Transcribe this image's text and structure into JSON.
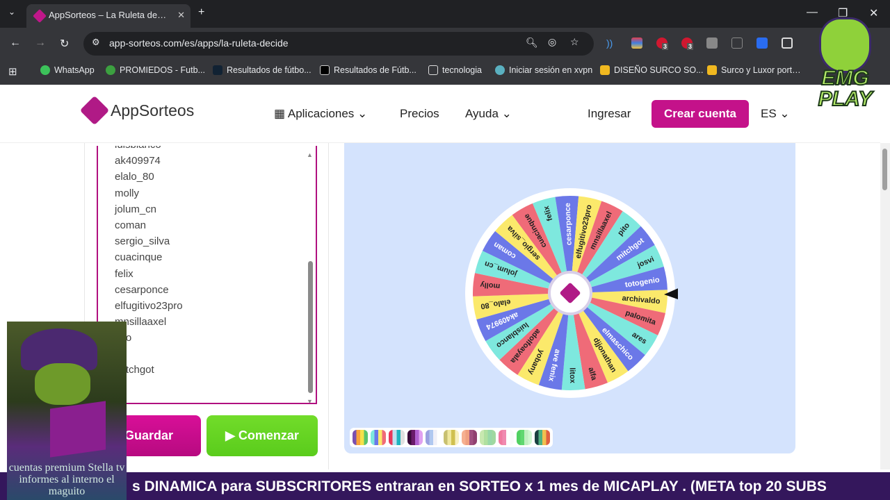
{
  "browser": {
    "tab_title": "AppSorteos – La Ruleta de la Suerte",
    "url": "app-sorteos.com/es/apps/la-ruleta-decide",
    "extension_badges": [
      "3",
      "3"
    ],
    "bookmarks": [
      "WhatsApp",
      "PROMIEDOS - Futb...",
      "Resultados de fútbo...",
      "Resultados de Fútb...",
      "tecnologia",
      "Iniciar sesión en xvpn",
      "DISEÑO SURCO SO...",
      "Surco y Luxor porta..."
    ]
  },
  "header": {
    "logo": "AppSorteos",
    "nav": [
      "Aplicaciones",
      "Precios",
      "Ayuda"
    ],
    "login": "Ingresar",
    "signup": "Crear cuenta",
    "lang": "ES"
  },
  "entries": {
    "lines": [
      "luisblanco",
      "ak409974",
      "elalo_80",
      "molly",
      "jolum_cn",
      "coman",
      "sergio_silva",
      "cuacinque",
      "felix",
      "cesarponce",
      "elfugitivo23pro",
      "mnsillaaxel",
      "pito",
      "mitchgot"
    ]
  },
  "buttons": {
    "save": "Guardar",
    "start": "Comenzar"
  },
  "wheel": {
    "segments": [
      {
        "name": "archivaldo",
        "color": "#fbe96b"
      },
      {
        "name": "palomita",
        "color": "#ef6b78"
      },
      {
        "name": "ares",
        "color": "#7ee8de"
      },
      {
        "name": "elmaschico",
        "color": "#6b78e8"
      },
      {
        "name": "djjonathan",
        "color": "#fbe96b"
      },
      {
        "name": "alfa",
        "color": "#ef6b78"
      },
      {
        "name": "litox",
        "color": "#7ee8de"
      },
      {
        "name": "ave fenix",
        "color": "#6b78e8"
      },
      {
        "name": "yobany",
        "color": "#fbe96b"
      },
      {
        "name": "adolfoayala",
        "color": "#ef6b78"
      },
      {
        "name": "luisblanco",
        "color": "#7ee8de"
      },
      {
        "name": "ak409974",
        "color": "#6b78e8"
      },
      {
        "name": "elalo_80",
        "color": "#fbe96b"
      },
      {
        "name": "molly",
        "color": "#ef6b78"
      },
      {
        "name": "jolum_cn",
        "color": "#7ee8de"
      },
      {
        "name": "coman",
        "color": "#6b78e8"
      },
      {
        "name": "sergio_silva",
        "color": "#fbe96b"
      },
      {
        "name": "cuacinque",
        "color": "#ef6b78"
      },
      {
        "name": "felix",
        "color": "#7ee8de"
      },
      {
        "name": "cesarponce",
        "color": "#6b78e8"
      },
      {
        "name": "elfugitivo23pro",
        "color": "#fbe96b"
      },
      {
        "name": "mnsillaaxel",
        "color": "#ef6b78"
      },
      {
        "name": "pito",
        "color": "#7ee8de"
      },
      {
        "name": "mitchgot",
        "color": "#6b78e8"
      },
      {
        "name": "josvi",
        "color": "#7ee8de"
      },
      {
        "name": "totogenio",
        "color": "#6b78e8"
      }
    ]
  },
  "palettes": [
    [
      "#7b4fb0",
      "#f9a23b",
      "#f6e04a",
      "#5bc46b"
    ],
    [
      "#7ee8de",
      "#6b78e8",
      "#fbe96b",
      "#ef6b78"
    ],
    [
      "#e8385a",
      "#bfe0f0",
      "#1fb4bf",
      "#e0e0e0"
    ],
    [
      "#3a0a3a",
      "#6a1a6a",
      "#b060d0",
      "#e0a0f0"
    ],
    [
      "#9aa0e0",
      "#b0c8f0",
      "#f0f0f8",
      "#fff"
    ],
    [
      "#c8c070",
      "#f0e8a0",
      "#d0c050",
      "#f8f0c0"
    ],
    [
      "#f6b090",
      "#f0a080",
      "#a05080",
      "#904070"
    ],
    [
      "#c8e8b0",
      "#b0e0a0",
      "#98d8a8",
      "#a0d8a0"
    ],
    [
      "#f07aa0",
      "#f08ab0",
      "#fff",
      "#fafafa"
    ],
    [
      "#50d060",
      "#60d870",
      "#c0f0c0",
      "#d0f8d0"
    ],
    [
      "#1a4040",
      "#50b080",
      "#f0c050",
      "#e06040"
    ]
  ],
  "overlays": {
    "promo_caption": "cuentas premium Stella tv informes al interno el maguito",
    "logo": "EMG PLAY"
  },
  "ticker": "s DINAMICA para SUBSCRITORES entraran en SORTEO x 1 mes de MICAPLAY .  (META  top 20 SUBS"
}
